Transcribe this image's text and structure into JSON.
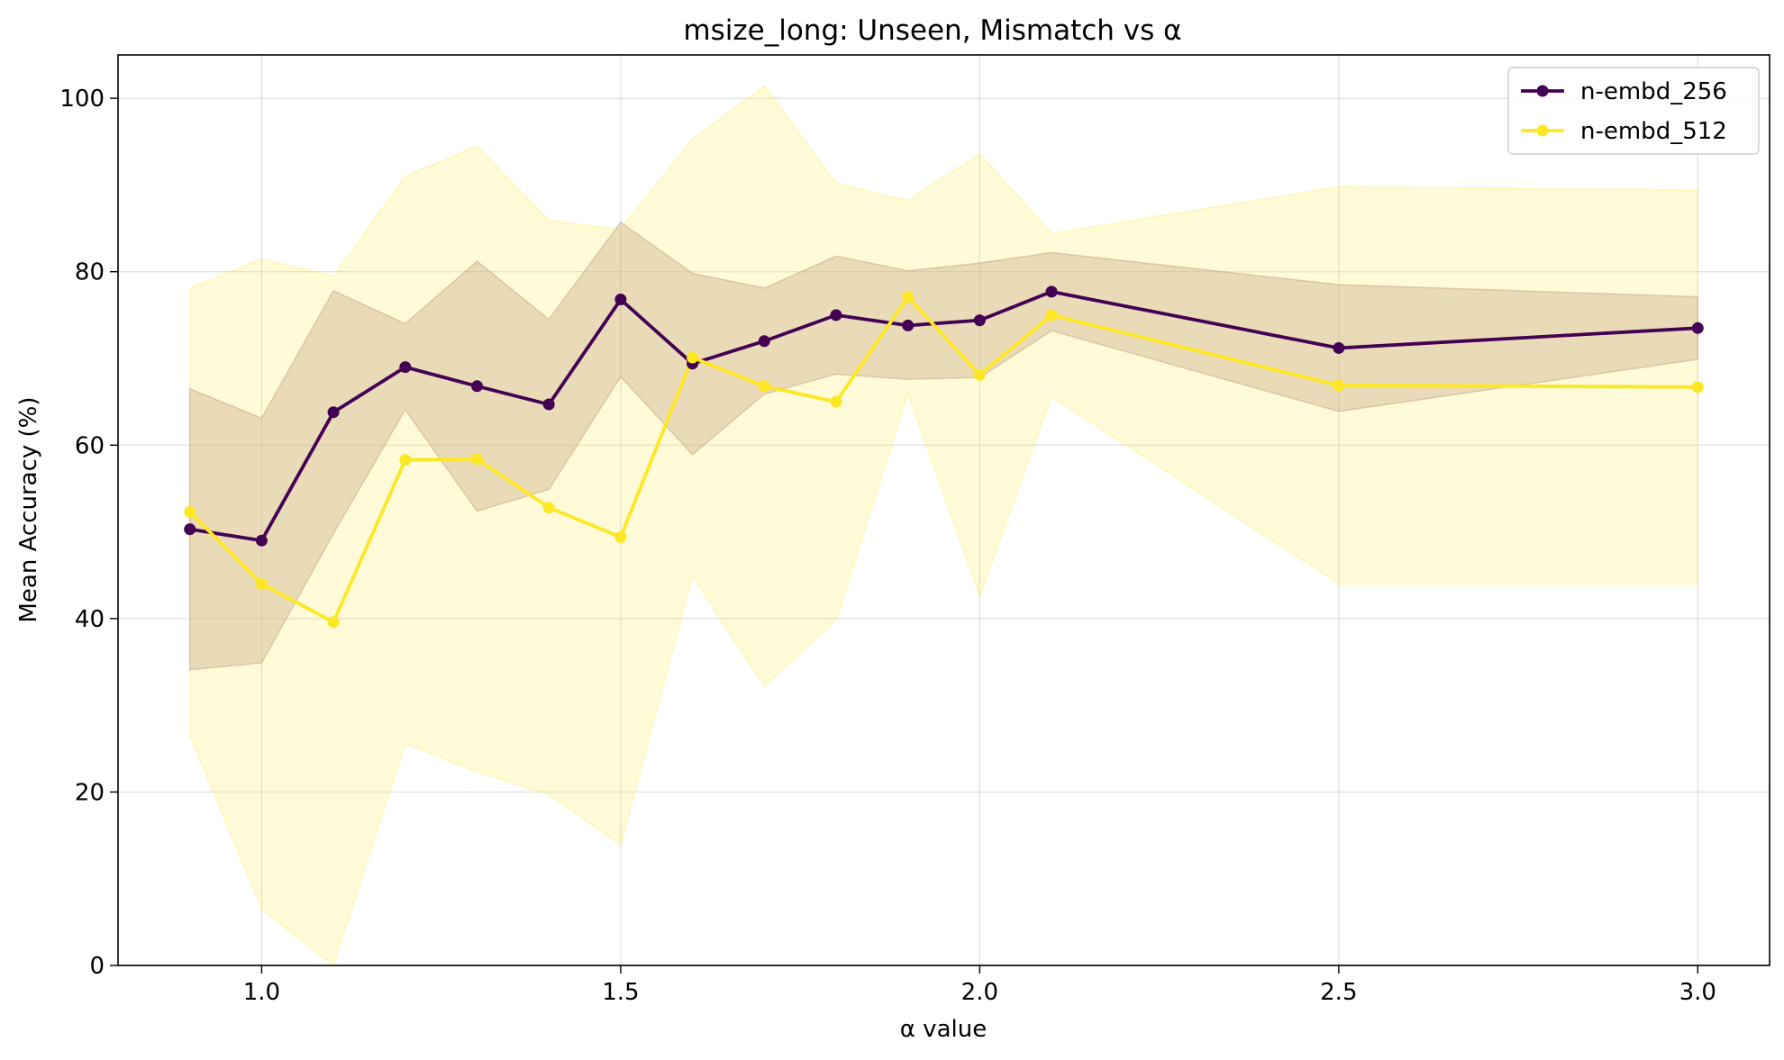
{
  "chart_data": {
    "type": "line",
    "title": "msize_long: Unseen, Mismatch vs α",
    "xlabel": "α value",
    "ylabel": "Mean Accuracy (%)",
    "xlim": [
      0.8,
      3.1
    ],
    "ylim": [
      0,
      105
    ],
    "xticks": [
      1.0,
      1.5,
      2.0,
      2.5,
      3.0
    ],
    "xtick_labels": [
      "1.0",
      "1.5",
      "2.0",
      "2.5",
      "3.0"
    ],
    "yticks": [
      0,
      20,
      40,
      60,
      80,
      100
    ],
    "ytick_labels": [
      "0",
      "20",
      "40",
      "60",
      "80",
      "100"
    ],
    "grid": true,
    "legend_position": "top-right",
    "x": [
      0.9,
      1.0,
      1.1,
      1.2,
      1.3,
      1.4,
      1.5,
      1.6,
      1.7,
      1.8,
      1.9,
      2.0,
      2.1,
      2.5,
      3.0
    ],
    "series": [
      {
        "name": "n-embd_256",
        "color": "#440154",
        "band_color": "#c8a883",
        "values": [
          50.3,
          49.0,
          63.8,
          69.0,
          66.8,
          64.7,
          76.8,
          69.4,
          72.0,
          75.0,
          73.8,
          74.4,
          77.7,
          71.2,
          73.5
        ],
        "upper": [
          66.5,
          63.1,
          77.8,
          74.0,
          81.2,
          74.5,
          85.7,
          79.8,
          78.1,
          81.8,
          80.1,
          81.0,
          82.2,
          78.5,
          77.1
        ],
        "lower": [
          34.1,
          34.9,
          49.8,
          64.1,
          52.4,
          54.9,
          67.9,
          58.9,
          65.9,
          68.2,
          67.6,
          67.8,
          73.2,
          63.9,
          69.9
        ]
      },
      {
        "name": "n-embd_512",
        "color": "#fde725",
        "band_color": "#fde725",
        "values": [
          52.3,
          44.0,
          39.6,
          58.3,
          58.4,
          52.8,
          49.4,
          70.1,
          66.8,
          65.0,
          77.1,
          68.1,
          75.0,
          66.9,
          66.7
        ],
        "upper": [
          78.1,
          81.5,
          79.5,
          91.0,
          94.5,
          85.9,
          84.9,
          95.3,
          101.4,
          90.2,
          88.2,
          93.6,
          84.4,
          89.8,
          89.4
        ],
        "lower": [
          26.5,
          6.5,
          0.0,
          25.6,
          22.3,
          19.7,
          13.9,
          44.9,
          32.2,
          39.8,
          66.0,
          42.6,
          65.6,
          44.0,
          44.0
        ]
      }
    ]
  }
}
